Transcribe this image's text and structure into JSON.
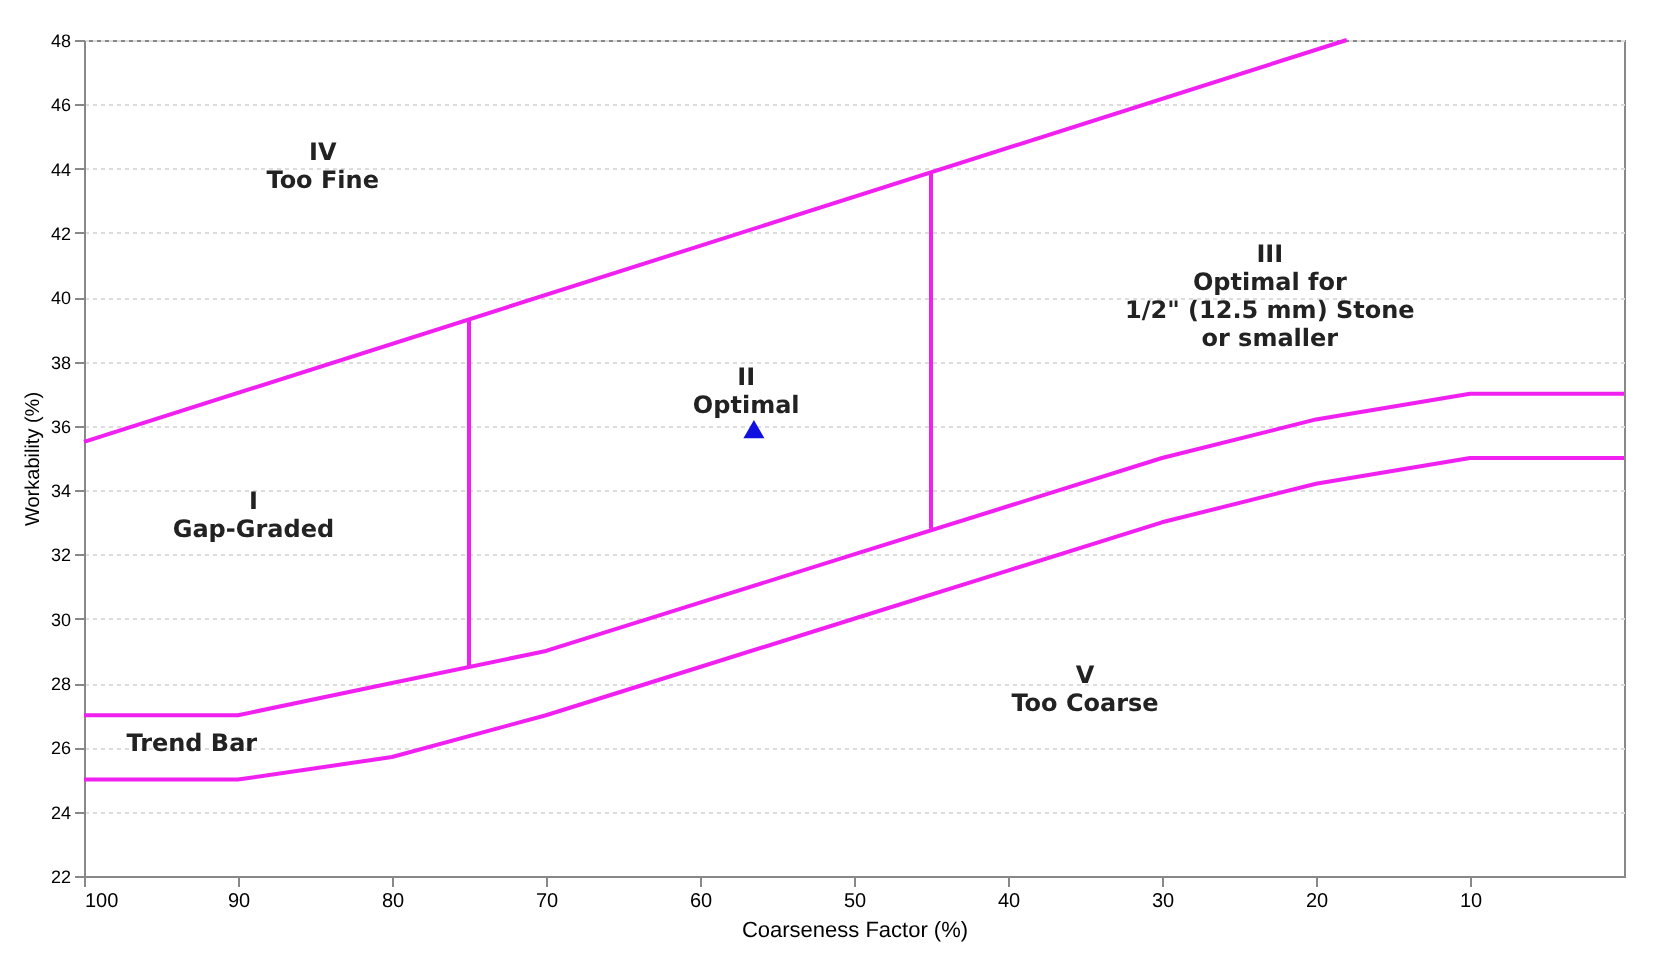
{
  "chart_data": {
    "type": "line",
    "xlabel": "Coarseness Factor (%)",
    "ylabel": "Workability (%)",
    "xlim": [
      100,
      0
    ],
    "xticks": [
      100,
      90,
      80,
      70,
      60,
      50,
      40,
      30,
      20,
      10
    ],
    "ylim": [
      22,
      48
    ],
    "yticks": [
      22,
      24,
      26,
      28,
      30,
      32,
      34,
      36,
      38,
      40,
      42,
      44,
      46,
      48
    ],
    "grid": "y",
    "series": [
      {
        "color": "#f020f0",
        "x": [
          100,
          18
        ],
        "values": [
          35.5,
          48
        ]
      },
      {
        "color": "#f020f0",
        "x": [
          100,
          90,
          80,
          70,
          60,
          50,
          40,
          30,
          20,
          10,
          0
        ],
        "values": [
          27,
          27,
          28,
          29,
          30.5,
          32,
          33.5,
          35,
          36.2,
          37,
          37
        ]
      },
      {
        "color": "#f020f0",
        "x": [
          100,
          90,
          80,
          70,
          60,
          50,
          40,
          30,
          20,
          10,
          0
        ],
        "values": [
          25,
          25,
          25.7,
          27,
          28.5,
          30,
          31.5,
          33,
          34.2,
          35,
          35
        ]
      },
      {
        "color": "#f020f0",
        "x": [
          75,
          75
        ],
        "values": [
          28.5,
          39.3
        ]
      },
      {
        "color": "#f020f0",
        "x": [
          45,
          45
        ],
        "values": [
          32.8,
          43.9
        ]
      },
      {
        "type": "scatter",
        "marker": "triangle",
        "color": "#1010e0",
        "x": [
          56.5
        ],
        "values": [
          35.9
        ]
      }
    ],
    "annotations": [
      "IV\nToo Fine",
      "III\nOptimal for\n1/2\" (12.5 mm) Stone\nor smaller",
      "II\nOptimal",
      "I\nGap-Graded",
      "V\nToo Coarse",
      "Trend Bar"
    ]
  }
}
